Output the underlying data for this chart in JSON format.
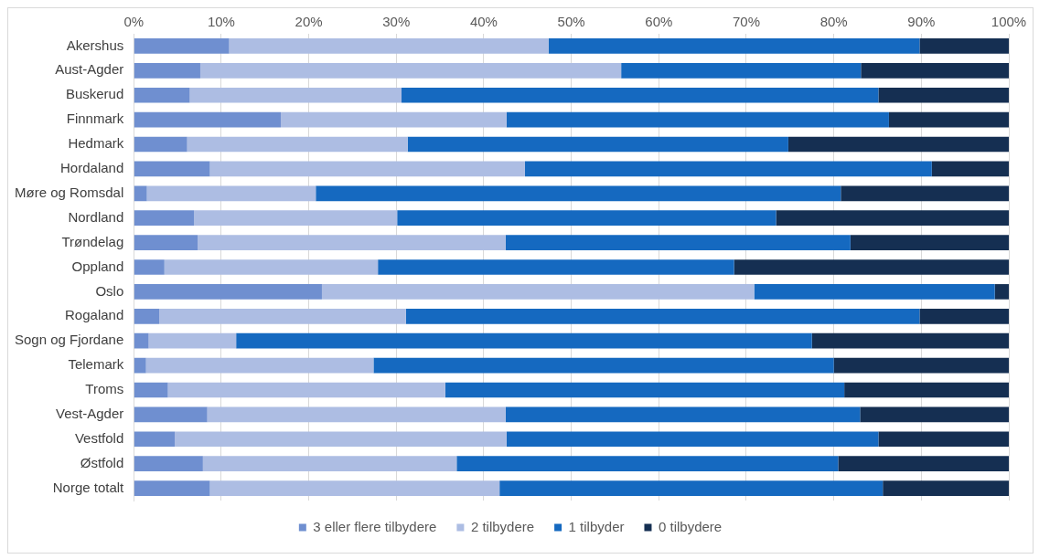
{
  "chart_data": {
    "type": "bar",
    "orientation": "horizontal",
    "stacked": true,
    "grid": "x",
    "legend": "bottom",
    "categories": [
      "Akershus",
      "Aust-Agder",
      "Buskerud",
      "Finnmark",
      "Hedmark",
      "Hordaland",
      "Møre og Romsdal",
      "Nordland",
      "Trøndelag",
      "Oppland",
      "Oslo",
      "Rogaland",
      "Sogn og Fjordane",
      "Telemark",
      "Troms",
      "Vest-Agder",
      "Vestfold",
      "Østfold",
      "Norge totalt"
    ],
    "xlim": [
      0,
      100
    ],
    "xticks": [
      {
        "value": 0,
        "label": "0%"
      },
      {
        "value": 10,
        "label": "10%"
      },
      {
        "value": 20,
        "label": "20%"
      },
      {
        "value": 30,
        "label": "30%"
      },
      {
        "value": 40,
        "label": "40%"
      },
      {
        "value": 50,
        "label": "50%"
      },
      {
        "value": 60,
        "label": "60%"
      },
      {
        "value": 70,
        "label": "70%"
      },
      {
        "value": 80,
        "label": "80%"
      },
      {
        "value": 90,
        "label": "90%"
      },
      {
        "value": 100,
        "label": "100%"
      }
    ],
    "series": [
      {
        "name": "3 eller flere tilbydere",
        "color": "#6f8fd0",
        "values": [
          10.9,
          7.6,
          6.4,
          16.8,
          6.1,
          8.7,
          1.5,
          6.9,
          7.3,
          3.5,
          21.5,
          2.9,
          1.7,
          1.4,
          3.9,
          8.4,
          4.7,
          7.9,
          8.7
        ]
      },
      {
        "name": "2 tilbydere",
        "color": "#adbde3",
        "values": [
          36.5,
          48.1,
          24.2,
          25.8,
          25.2,
          36.0,
          19.3,
          23.2,
          35.2,
          24.4,
          49.4,
          28.2,
          10.0,
          26.0,
          31.7,
          34.1,
          37.9,
          29.0,
          33.1
        ]
      },
      {
        "name": "1 tilbyder",
        "color": "#1569c0",
        "values": [
          42.4,
          27.4,
          54.5,
          43.7,
          43.5,
          46.5,
          60.0,
          43.3,
          39.4,
          40.7,
          27.5,
          58.7,
          65.8,
          52.6,
          45.6,
          40.5,
          42.5,
          43.6,
          43.8
        ]
      },
      {
        "name": "0 tilbydere",
        "color": "#152f52",
        "values": [
          10.2,
          16.9,
          14.9,
          13.7,
          25.2,
          8.8,
          19.2,
          26.6,
          18.1,
          31.4,
          1.6,
          10.2,
          22.5,
          20.0,
          18.8,
          17.0,
          14.9,
          19.5,
          14.4
        ]
      }
    ]
  }
}
